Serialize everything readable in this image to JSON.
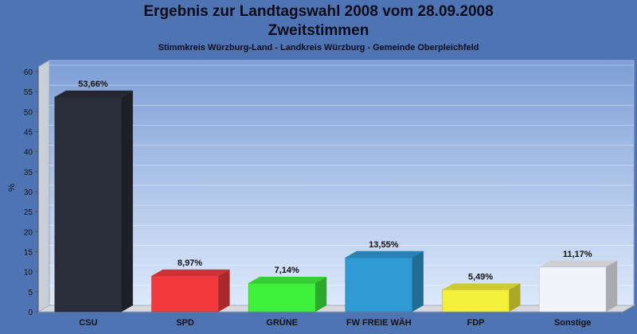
{
  "title": "Ergebnis zur Landtagswahl 2008 vom 28.09.2008",
  "subtitle": "Zweitstimmen",
  "caption": "Stimmkreis Würzburg-Land - Landkreis Würzburg - Gemeinde Oberpleichfeld",
  "chart_data": {
    "type": "bar",
    "title": "Ergebnis zur Landtagswahl 2008 vom 28.09.2008",
    "subtitle": "Zweitstimmen",
    "xlabel": "",
    "ylabel": "%",
    "ylim": [
      0,
      60
    ],
    "yticks": [
      0,
      5,
      10,
      15,
      20,
      25,
      30,
      35,
      40,
      45,
      50,
      55,
      60
    ],
    "grid": true,
    "categories": [
      "CSU",
      "SPD",
      "GRÜNE",
      "FW FREIE WÄH",
      "FDP",
      "Sonstige"
    ],
    "values": [
      53.66,
      8.97,
      7.14,
      13.55,
      5.49,
      11.17
    ],
    "value_labels": [
      "53,66%",
      "8,97%",
      "7,14%",
      "13,55%",
      "5,49%",
      "11,17%"
    ],
    "colors": [
      "#2a2e3b",
      "#f23a3e",
      "#3ef23c",
      "#2f9ad4",
      "#f2f03a",
      "#f2f4fa"
    ]
  }
}
